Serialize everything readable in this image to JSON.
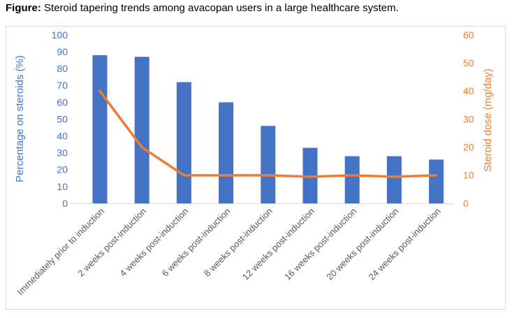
{
  "caption": {
    "prefix": "Figure:",
    "text": "Steroid tapering trends among avacopan users in a large healthcare system."
  },
  "colors": {
    "bar_blue": "#4472C4",
    "line_orange": "#ED7D31",
    "x_label_gray": "#595959",
    "axis_line_gray": "#D9D9D9",
    "border_gray": "#D9D9D9"
  },
  "chart_data": {
    "type": "bar",
    "subtype": "combo-bar-line-dual-axis",
    "title": "Steroid tapering trends among avacopan users in a large healthcare system.",
    "categories": [
      "Immediately prior to induction",
      "2 weeks post-induction",
      "4 weeks post-induction",
      "6 weeks post-induction",
      "8 weeks post-induction",
      "12 weeks post-induction",
      "16 weeks post-induction",
      "20 weeks post-induction",
      "24 weeks post-induction"
    ],
    "series": [
      {
        "name": "Percentage on steroids",
        "type": "bar",
        "axis": "left",
        "color": "#4472C4",
        "values": [
          88,
          87,
          72,
          60,
          46,
          33,
          28,
          28,
          26
        ]
      },
      {
        "name": "Steroid dose",
        "type": "line",
        "axis": "right",
        "color": "#ED7D31",
        "values": [
          40,
          20,
          10,
          10,
          10,
          9.5,
          10,
          9.5,
          10
        ]
      }
    ],
    "left_axis": {
      "label": "Percentage on steroids (%)",
      "min": 0,
      "max": 100,
      "step": 10,
      "ticks": [
        0,
        10,
        20,
        30,
        40,
        50,
        60,
        70,
        80,
        90,
        100
      ],
      "color": "#4472C4"
    },
    "right_axis": {
      "label": "Steroid dose (mg/day)",
      "min": 0,
      "max": 60,
      "step": 10,
      "ticks": [
        0,
        10,
        20,
        30,
        40,
        50,
        60
      ],
      "color": "#ED7D31"
    },
    "grid": false,
    "legend": "none",
    "x_label_rotation_deg": 45
  }
}
